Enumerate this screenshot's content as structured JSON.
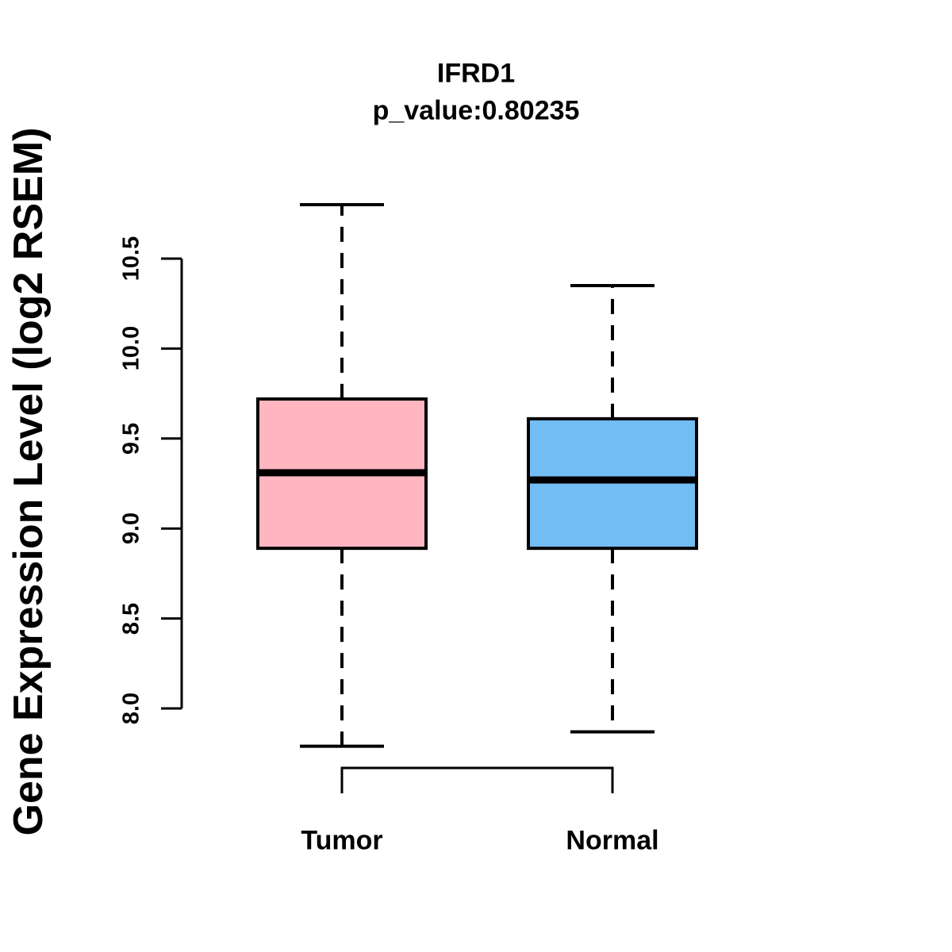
{
  "chart_data": {
    "type": "boxplot",
    "title": "IFRD1",
    "subtitle": "p_value:0.80235",
    "ylabel": "Gene Expression Level (log2 RSEM)",
    "categories": [
      "Tumor",
      "Normal"
    ],
    "ylim": [
      8.0,
      10.5
    ],
    "yticks": [
      8.0,
      8.5,
      9.0,
      9.5,
      10.0,
      10.5
    ],
    "ytick_labels": [
      "8.0",
      "8.5",
      "9.0",
      "9.5",
      "10.0",
      "10.5"
    ],
    "grid": false,
    "legend": false,
    "series": [
      {
        "name": "Tumor",
        "color": "#FFB6C1",
        "whisker_low": 7.79,
        "q1": 8.89,
        "median": 9.31,
        "q3": 9.72,
        "whisker_high": 10.8
      },
      {
        "name": "Normal",
        "color": "#73BDF5",
        "whisker_low": 7.87,
        "q1": 8.89,
        "median": 9.27,
        "q3": 9.61,
        "whisker_high": 10.35
      }
    ],
    "colors": {
      "box_border": "#000000",
      "median_line": "#000000",
      "axis": "#000000",
      "text": "#000000",
      "background": "#FFFFFF"
    }
  }
}
